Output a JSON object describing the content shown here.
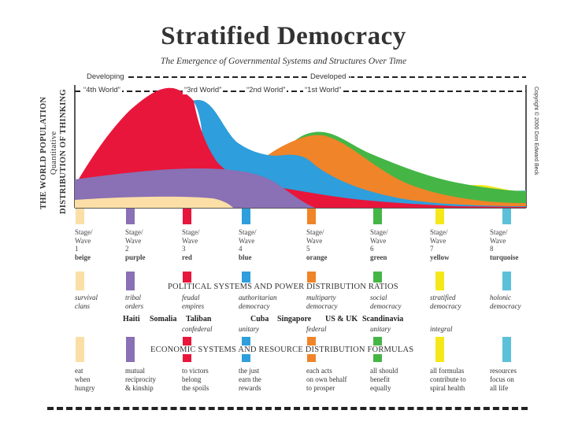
{
  "title": "Stratified Democracy",
  "subtitle": "The Emergence of Governmental Systems and Structures Over Time",
  "header": {
    "developing": "Developing",
    "developed": "Developed",
    "world4": "“4th World”",
    "world3": "“3rd World”",
    "world2": "“2nd World”",
    "world1": "“1st World”"
  },
  "side_labels": {
    "line1": "THE WORLD POPULATION",
    "line2": "Quantitative",
    "line3": "DISTRIBUTION OF THINKING"
  },
  "copyright": "Copyright © 2000 Don Edward Beck",
  "colors": {
    "beige": "#fbdfa6",
    "purple": "#8a70b4",
    "red": "#e8163b",
    "blue": "#2e9edc",
    "orange": "#f08428",
    "green": "#45b646",
    "yellow": "#f5e81a",
    "turquoise": "#5cc0d8"
  },
  "stages": [
    {
      "line1": "Stage/",
      "line2": "Wave",
      "num": "1",
      "name": "beige"
    },
    {
      "line1": "Stage/",
      "line2": "Wave",
      "num": "2",
      "name": "purple"
    },
    {
      "line1": "Stage/",
      "line2": "Wave",
      "num": "3",
      "name": "red"
    },
    {
      "line1": "Stage/",
      "line2": "Wave",
      "num": "4",
      "name": "blue"
    },
    {
      "line1": "Stage/",
      "line2": "Wave",
      "num": "5",
      "name": "orange"
    },
    {
      "line1": "Stage/",
      "line2": "Wave",
      "num": "6",
      "name": "green"
    },
    {
      "line1": "Stage/",
      "line2": "Wave",
      "num": "7",
      "name": "yellow"
    },
    {
      "line1": "Stage/",
      "line2": "Wave",
      "num": "8",
      "name": "turquoise"
    }
  ],
  "political_title": "POLITICAL SYSTEMS AND POWER DISTRIBUTION RATIOS",
  "political": [
    {
      "l1": "survival",
      "l2": "clans"
    },
    {
      "l1": "tribal",
      "l2": "orders"
    },
    {
      "l1": "feudal",
      "l2": "empires"
    },
    {
      "l1": "authoritarian",
      "l2": "democracy"
    },
    {
      "l1": "multiparty",
      "l2": "democracy"
    },
    {
      "l1": "social",
      "l2": "democracy"
    },
    {
      "l1": "stratified",
      "l2": "democracy"
    },
    {
      "l1": "holonic",
      "l2": "democracy"
    }
  ],
  "countries": {
    "haiti": "Haiti",
    "somalia": "Somalia",
    "taliban": "Taliban",
    "cuba": "Cuba",
    "singapore": "Singapore",
    "us_uk": "US & UK",
    "scandinavia": "Scandinavia"
  },
  "subtypes": {
    "confederal": "confederal",
    "unitary1": "unitary",
    "federal": "federal",
    "unitary2": "unitary",
    "integral": "integral"
  },
  "economic_title": "ECONOMIC SYSTEMS AND RESOURCE DISTRIBUTION FORMULAS",
  "economic": [
    {
      "l1": "eat",
      "l2": "when",
      "l3": "hungry"
    },
    {
      "l1": "mutual",
      "l2": "reciprocity",
      "l3": "& kinship"
    },
    {
      "l1": "to victors",
      "l2": "belong",
      "l3": "the spoils"
    },
    {
      "l1": "the just",
      "l2": "earn the",
      "l3": "rewards"
    },
    {
      "l1": "each acts",
      "l2": "on own behalf",
      "l3": "to prosper"
    },
    {
      "l1": "all should",
      "l2": "benefit",
      "l3": "equally"
    },
    {
      "l1": "all formulas",
      "l2": "contribute to",
      "l3": "spiral health"
    },
    {
      "l1": "resources",
      "l2": "focus on",
      "l3": "all life"
    }
  ]
}
